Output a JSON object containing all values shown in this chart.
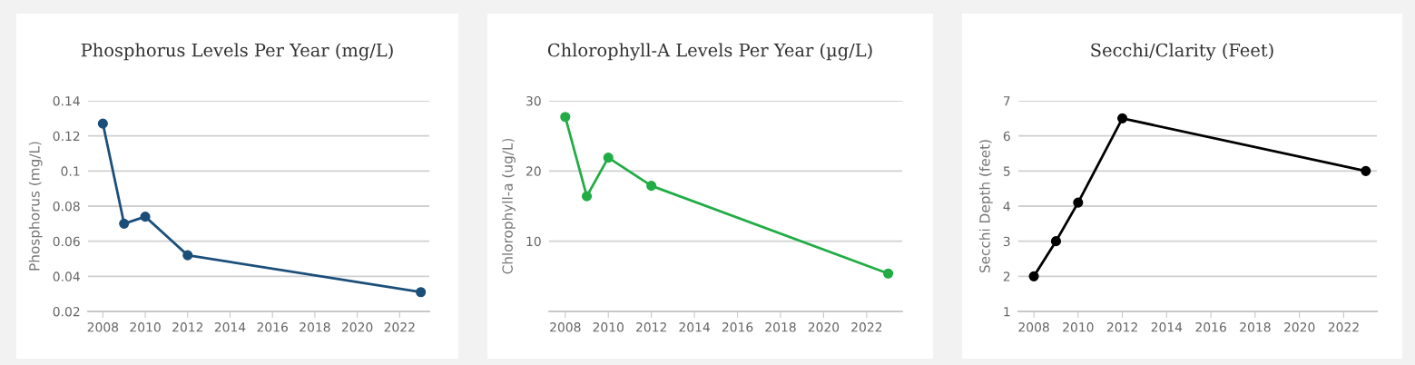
{
  "chart_data": [
    {
      "type": "line",
      "title": "Phosphorus Levels Per Year (mg/L)",
      "ylabel": "Phosphorus (mg/L)",
      "x": [
        2008,
        2009,
        2010,
        2012,
        2023
      ],
      "series": [
        {
          "color": "#1b4f7a",
          "values": [
            0.127,
            0.07,
            0.074,
            0.052,
            0.031
          ]
        }
      ],
      "xlim": [
        2007.3,
        2023.4
      ],
      "xticks": [
        2008,
        2010,
        2012,
        2014,
        2016,
        2018,
        2020,
        2022
      ],
      "ylim": [
        0.02,
        0.14
      ],
      "yticks": [
        0.02,
        0.04,
        0.06,
        0.08,
        {
          "value": 0.1,
          "label": "0.1"
        },
        0.12,
        0.14
      ],
      "grid": "y",
      "marker": "circle",
      "line_style": "solid"
    },
    {
      "type": "line",
      "title": "Chlorophyll-A Levels Per Year (µg/L)",
      "ylabel": "Chlorophyll-a (ug/L)",
      "x": [
        2008,
        2009,
        2010,
        2012,
        2023
      ],
      "series": [
        {
          "color": "#22ac45",
          "values": [
            27.7,
            16.4,
            21.9,
            17.9,
            5.4
          ]
        }
      ],
      "xlim": [
        2007.25,
        2023.65
      ],
      "xticks": [
        2008,
        2010,
        2012,
        2014,
        2016,
        2018,
        2020,
        2022
      ],
      "ylim": [
        0,
        30
      ],
      "yticks": [
        {
          "value": 0,
          "label": null
        },
        10,
        20,
        30
      ],
      "grid": "y",
      "marker": "circle",
      "line_style": "solid"
    },
    {
      "type": "line",
      "title": "Secchi/Clarity (Feet)",
      "ylabel": "Secchi Depth (feet)",
      "x": [
        2008,
        2009,
        2010,
        2012,
        2023
      ],
      "series": [
        {
          "color": "#000000",
          "values": [
            2,
            3,
            4.1,
            6.5,
            5
          ]
        }
      ],
      "xlim": [
        2007.3,
        2023.5
      ],
      "xticks": [
        2008,
        2010,
        2012,
        2014,
        2016,
        2018,
        2020,
        2022
      ],
      "ylim": [
        1,
        7
      ],
      "yticks": [
        1,
        2,
        3,
        4,
        5,
        6,
        7
      ],
      "grid": "y",
      "marker": "circle",
      "line_style": "solid"
    }
  ]
}
